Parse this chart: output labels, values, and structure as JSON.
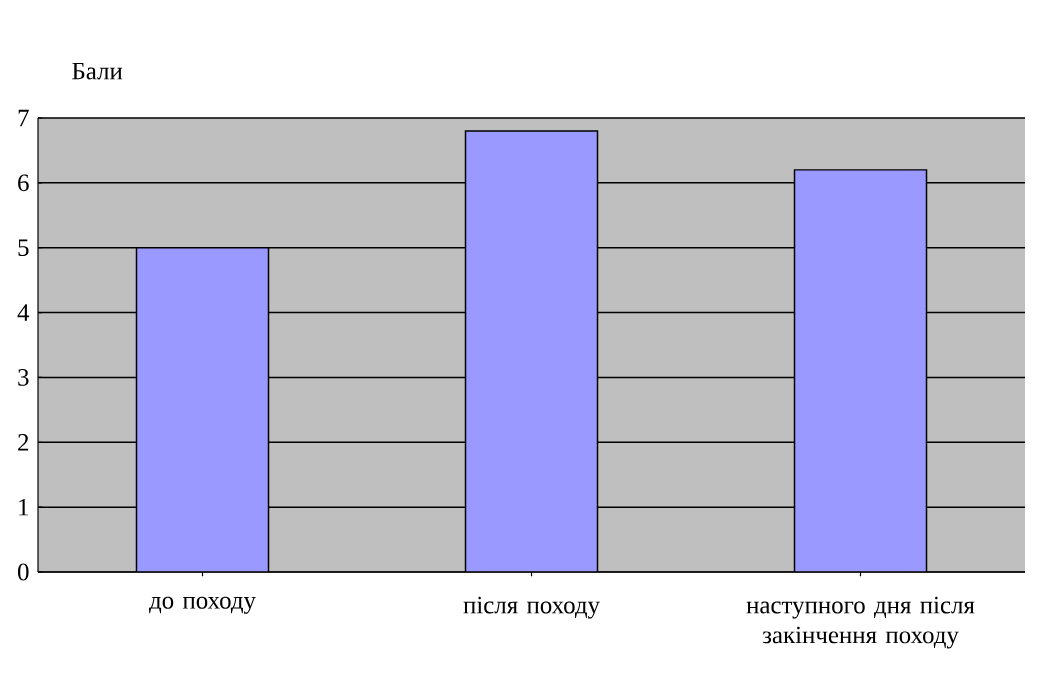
{
  "chart_data": {
    "type": "bar",
    "ylabel": "Бали",
    "categories": [
      "до походу",
      "після походу",
      "наступного дня після закінчення походу"
    ],
    "values": [
      5.0,
      6.8,
      6.2
    ],
    "color": "#9999ff",
    "ylim": [
      0,
      7
    ],
    "yticks": [
      0,
      1,
      2,
      3,
      4,
      5,
      6,
      7
    ],
    "grid": "y"
  }
}
